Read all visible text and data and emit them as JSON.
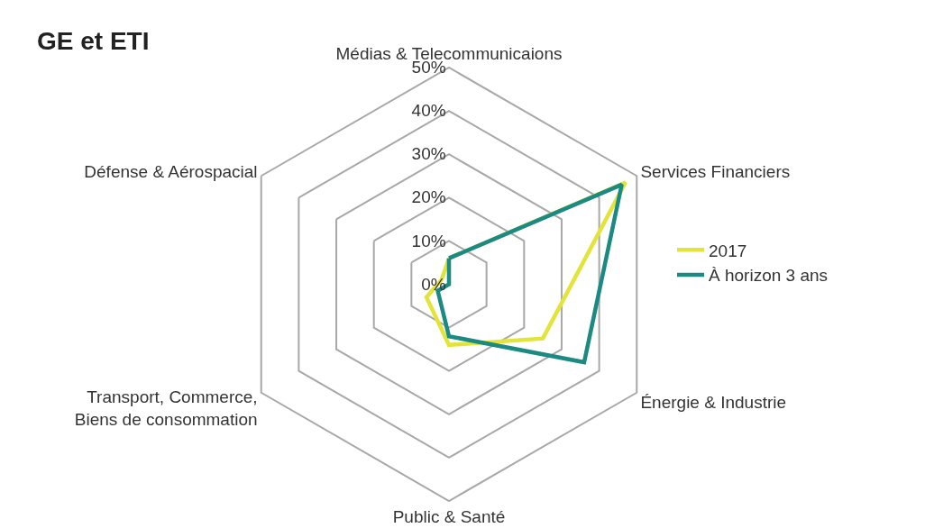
{
  "chart_data": {
    "type": "radar",
    "title": "GE et ETI",
    "categories": [
      "Médias & Telecommunicaions",
      "Services Financiers",
      "Énergie & Industrie",
      "Public & Santé",
      "Transport, Commerce,\nBiens de consommation",
      "Défense & Aérospacial"
    ],
    "series": [
      {
        "name": "2017",
        "color": "#e2e43a",
        "values": [
          6,
          47,
          25,
          14,
          6,
          2
        ]
      },
      {
        "name": "À horizon 3 ans",
        "color": "#1a8a82",
        "values": [
          6,
          46,
          36,
          12,
          3,
          0
        ]
      }
    ],
    "ylim": [
      0,
      50
    ],
    "yticks": [
      {
        "value": 0,
        "label": "0%"
      },
      {
        "value": 10,
        "label": "10%"
      },
      {
        "value": 20,
        "label": "20%"
      },
      {
        "value": 30,
        "label": "30%"
      },
      {
        "value": 40,
        "label": "40%"
      },
      {
        "value": 50,
        "label": "50%"
      }
    ],
    "grid": true,
    "legend": "right",
    "marker": "none",
    "line_style": "solid"
  }
}
